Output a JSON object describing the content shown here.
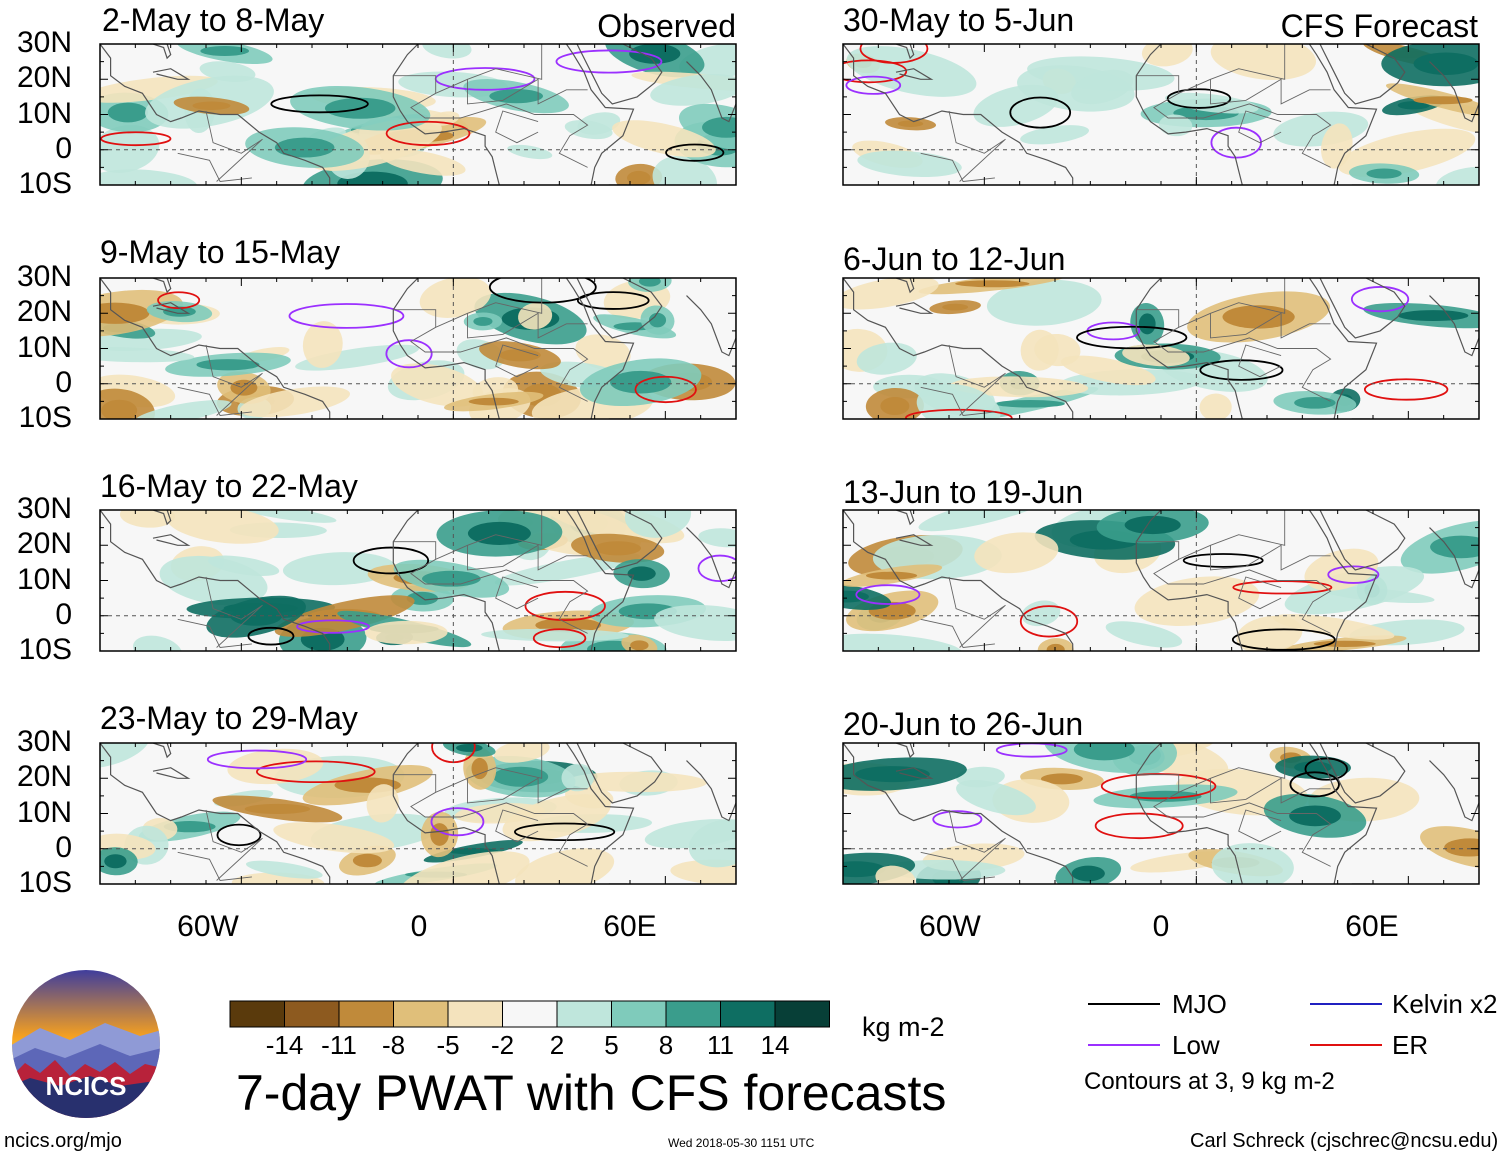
{
  "panels": {
    "observed": [
      {
        "title": "2-May to 8-May",
        "tag": "Observed"
      },
      {
        "title": "9-May to 15-May",
        "tag": ""
      },
      {
        "title": "16-May to 22-May",
        "tag": ""
      },
      {
        "title": "23-May to 29-May",
        "tag": ""
      }
    ],
    "forecast": [
      {
        "title": "30-May to 5-Jun",
        "tag": "CFS Forecast"
      },
      {
        "title": "6-Jun to 12-Jun",
        "tag": ""
      },
      {
        "title": "13-Jun to 19-Jun",
        "tag": ""
      },
      {
        "title": "20-Jun to 26-Jun",
        "tag": ""
      }
    ]
  },
  "lat_labels": [
    "30N",
    "20N",
    "10N",
    "0",
    "10S"
  ],
  "lon_labels": [
    "60W",
    "0",
    "60E"
  ],
  "colorbar": {
    "colors": [
      "#5a3a0c",
      "#8d5a1f",
      "#c08a3a",
      "#e0bf7a",
      "#f4e3bd",
      "#f7f7f7",
      "#bfe6dc",
      "#7fcbbb",
      "#3a9d8c",
      "#0e6e62",
      "#073f37"
    ],
    "ticks": [
      "-14",
      "-11",
      "-8",
      "-5",
      "-2",
      "2",
      "5",
      "8",
      "11",
      "14"
    ],
    "unit": "kg m-2"
  },
  "title": "7-day PWAT with CFS forecasts",
  "legend": {
    "items": [
      {
        "label": "MJO",
        "color": "#000000"
      },
      {
        "label": "Kelvin x2",
        "color": "#2020c0"
      },
      {
        "label": "Low",
        "color": "#9b30ff"
      },
      {
        "label": "ER",
        "color": "#e01010"
      }
    ],
    "note": "Contours at 3, 9 kg m-2"
  },
  "logo": {
    "text": "NCICS"
  },
  "footer": {
    "url": "ncics.org/mjo",
    "timestamp": "Wed 2018-05-30 1151 UTC",
    "credit": "Carl Schreck (cjschrec@ncsu.edu)"
  }
}
